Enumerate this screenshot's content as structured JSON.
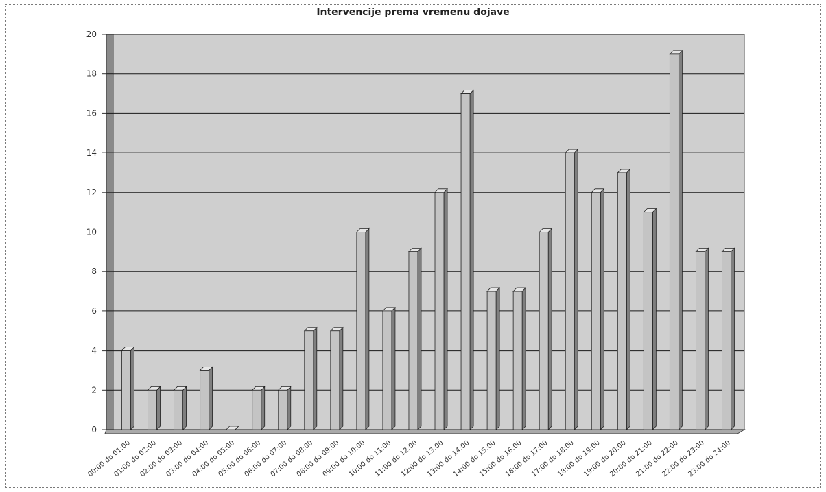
{
  "chart_data": {
    "type": "bar",
    "title": "Intervencije prema vremenu dojave",
    "xlabel": "",
    "ylabel": "",
    "ylim": [
      0,
      20
    ],
    "yticks": [
      0,
      2,
      4,
      6,
      8,
      10,
      12,
      14,
      16,
      18,
      20
    ],
    "grid": true,
    "categories": [
      "00:00 do 01:00",
      "01:00 do 02:00",
      "02:00 do 03:00",
      "03:00 do 04:00",
      "04:00 do 05:00",
      "05:00 do 06:00",
      "06:00 do 07:00",
      "07:00 do 08:00",
      "08:00 do 09:00",
      "09:00 do 10:00",
      "10:00 do 11:00",
      "11:00 do 12:00",
      "12:00 do 13:00",
      "13:00 do 14:00",
      "14:00 do 15:00",
      "15:00 do 16:00",
      "16:00 do 17:00",
      "17:00 do 18:00",
      "18:00 do 19:00",
      "19:00 do 20:00",
      "20:00 do 21:00",
      "21:00 do 22:00",
      "22:00 do 23:00",
      "23:00 do 24:00"
    ],
    "values": [
      4,
      2,
      2,
      3,
      0,
      2,
      2,
      5,
      5,
      10,
      6,
      9,
      12,
      17,
      7,
      7,
      10,
      14,
      12,
      13,
      11,
      19,
      9,
      9
    ],
    "colors": {
      "bar_front": "#c4c4c4",
      "bar_side": "#7f7f7f",
      "bar_top": "#e6e6e6",
      "wall": "#cfcfcf",
      "floor": "#a9a9a9",
      "grid": "#1a1a1a"
    }
  }
}
